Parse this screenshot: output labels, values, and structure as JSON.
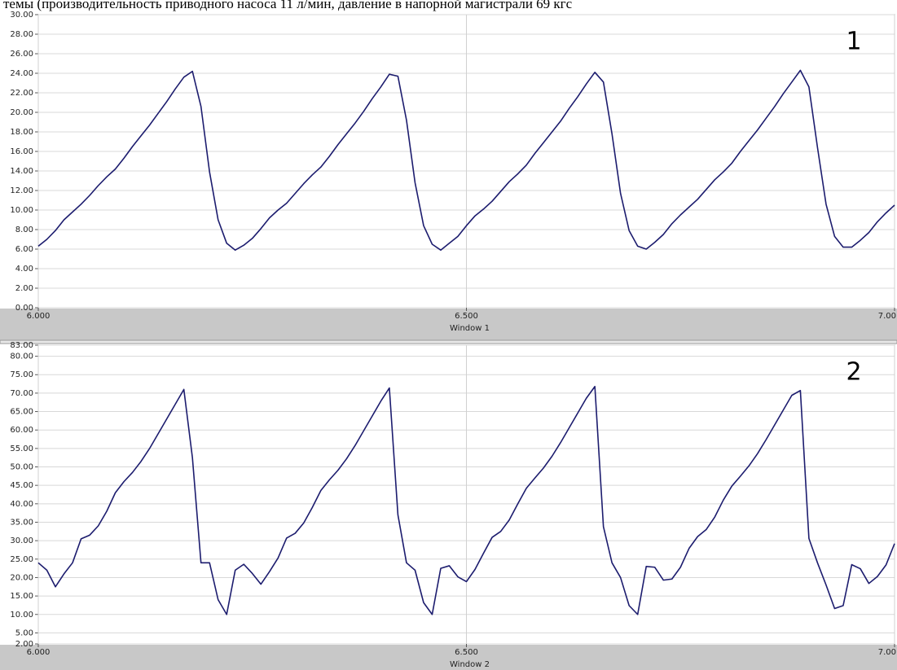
{
  "caption": "темы (производительность приводного насоса 11 л/мин, давление в напорной магистрали 69 кгс",
  "chart_data": [
    {
      "type": "line",
      "x_label": "Window 1",
      "annotation": "1",
      "xlim": [
        6,
        7
      ],
      "xticks": [
        {
          "value": 6,
          "label": "6.000"
        },
        {
          "value": 6.5,
          "label": "6.500"
        },
        {
          "value": 7,
          "label": "7.00"
        }
      ],
      "ylim": [
        0,
        30
      ],
      "yticks": [
        {
          "value": 0,
          "label": "0.00"
        },
        {
          "value": 2,
          "label": "2.00"
        },
        {
          "value": 4,
          "label": "4.00"
        },
        {
          "value": 6,
          "label": "6.00"
        },
        {
          "value": 8,
          "label": "8.00"
        },
        {
          "value": 10,
          "label": "10.00"
        },
        {
          "value": 12,
          "label": "12.00"
        },
        {
          "value": 14,
          "label": "14.00"
        },
        {
          "value": 16,
          "label": "16.00"
        },
        {
          "value": 18,
          "label": "18.00"
        },
        {
          "value": 20,
          "label": "20.00"
        },
        {
          "value": 22,
          "label": "22.00"
        },
        {
          "value": 24,
          "label": "24.00"
        },
        {
          "value": 26,
          "label": "26.00"
        },
        {
          "value": 28,
          "label": "28.00"
        },
        {
          "value": 30,
          "label": "30.00"
        }
      ],
      "grid": true,
      "x": [
        6,
        6.01,
        6.02,
        6.03,
        6.04,
        6.05,
        6.06,
        6.07,
        6.08,
        6.09,
        6.1,
        6.11,
        6.12,
        6.13,
        6.14,
        6.15,
        6.16,
        6.17,
        6.18,
        6.19,
        6.2,
        6.21,
        6.22,
        6.23,
        6.24,
        6.25,
        6.26,
        6.27,
        6.28,
        6.29,
        6.3,
        6.31,
        6.32,
        6.33,
        6.34,
        6.35,
        6.36,
        6.37,
        6.38,
        6.39,
        6.4,
        6.41,
        6.42,
        6.43,
        6.44,
        6.45,
        6.46,
        6.47,
        6.48,
        6.49,
        6.5,
        6.51,
        6.52,
        6.53,
        6.54,
        6.55,
        6.56,
        6.57,
        6.58,
        6.59,
        6.6,
        6.61,
        6.62,
        6.63,
        6.64,
        6.65,
        6.66,
        6.67,
        6.68,
        6.69,
        6.7,
        6.71,
        6.72,
        6.73,
        6.74,
        6.75,
        6.76,
        6.77,
        6.78,
        6.79,
        6.8,
        6.81,
        6.82,
        6.83,
        6.84,
        6.85,
        6.86,
        6.87,
        6.88,
        6.89,
        6.9,
        6.91,
        6.92,
        6.93,
        6.94,
        6.95,
        6.96,
        6.97,
        6.98,
        6.99,
        7
      ],
      "series": [
        {
          "color": "#1c1c6e",
          "values": [
            6.3,
            7.0,
            7.9,
            9.0,
            9.8,
            10.6,
            11.5,
            12.5,
            13.4,
            14.2,
            15.3,
            16.5,
            17.6,
            18.7,
            19.9,
            21.1,
            22.4,
            23.6,
            24.2,
            20.6,
            13.9,
            9.0,
            6.6,
            5.9,
            6.4,
            7.1,
            8.1,
            9.2,
            10.0,
            10.7,
            11.7,
            12.7,
            13.6,
            14.4,
            15.5,
            16.7,
            17.8,
            18.9,
            20.1,
            21.4,
            22.6,
            23.9,
            23.7,
            19.2,
            12.8,
            8.4,
            6.5,
            5.9,
            6.6,
            7.3,
            8.4,
            9.4,
            10.1,
            10.9,
            11.9,
            12.9,
            13.7,
            14.6,
            15.8,
            16.9,
            18.0,
            19.1,
            20.4,
            21.6,
            22.9,
            24.1,
            23.1,
            17.8,
            11.7,
            7.9,
            6.3,
            6.0,
            6.7,
            7.5,
            8.6,
            9.5,
            10.3,
            11.1,
            12.1,
            13.1,
            13.9,
            14.8,
            16.0,
            17.1,
            18.2,
            19.4,
            20.6,
            21.9,
            23.1,
            24.3,
            22.6,
            16.4,
            10.6,
            7.3,
            6.2,
            6.2,
            6.9,
            7.7,
            8.8,
            9.7,
            10.5
          ]
        }
      ]
    },
    {
      "type": "line",
      "x_label": "Window 2",
      "annotation": "2",
      "xlim": [
        6,
        7
      ],
      "xticks": [
        {
          "value": 6,
          "label": "6.000"
        },
        {
          "value": 6.5,
          "label": "6.500"
        },
        {
          "value": 7,
          "label": "7.00"
        }
      ],
      "ylim": [
        2,
        83
      ],
      "yticks": [
        {
          "value": 2,
          "label": "2.00"
        },
        {
          "value": 5,
          "label": "5.00"
        },
        {
          "value": 10,
          "label": "10.00"
        },
        {
          "value": 15,
          "label": "15.00"
        },
        {
          "value": 20,
          "label": "20.00"
        },
        {
          "value": 25,
          "label": "25.00"
        },
        {
          "value": 30,
          "label": "30.00"
        },
        {
          "value": 35,
          "label": "35.00"
        },
        {
          "value": 40,
          "label": "40.00"
        },
        {
          "value": 45,
          "label": "45.00"
        },
        {
          "value": 50,
          "label": "50.00"
        },
        {
          "value": 55,
          "label": "55.00"
        },
        {
          "value": 60,
          "label": "60.00"
        },
        {
          "value": 65,
          "label": "65.00"
        },
        {
          "value": 70,
          "label": "70.00"
        },
        {
          "value": 75,
          "label": "75.00"
        },
        {
          "value": 80,
          "label": "80.00"
        },
        {
          "value": 83,
          "label": "83.00"
        }
      ],
      "grid": true,
      "x": [
        6,
        6.01,
        6.02,
        6.03,
        6.04,
        6.05,
        6.06,
        6.07,
        6.08,
        6.09,
        6.1,
        6.11,
        6.12,
        6.13,
        6.14,
        6.15,
        6.16,
        6.17,
        6.18,
        6.19,
        6.2,
        6.21,
        6.22,
        6.23,
        6.24,
        6.25,
        6.26,
        6.27,
        6.28,
        6.29,
        6.3,
        6.31,
        6.32,
        6.33,
        6.34,
        6.35,
        6.36,
        6.37,
        6.38,
        6.39,
        6.4,
        6.41,
        6.42,
        6.43,
        6.44,
        6.45,
        6.46,
        6.47,
        6.48,
        6.49,
        6.5,
        6.51,
        6.52,
        6.53,
        6.54,
        6.55,
        6.56,
        6.57,
        6.58,
        6.59,
        6.6,
        6.61,
        6.62,
        6.63,
        6.64,
        6.65,
        6.66,
        6.67,
        6.68,
        6.69,
        6.7,
        6.71,
        6.72,
        6.73,
        6.74,
        6.75,
        6.76,
        6.77,
        6.78,
        6.79,
        6.8,
        6.81,
        6.82,
        6.83,
        6.84,
        6.85,
        6.86,
        6.87,
        6.88,
        6.89,
        6.9,
        6.91,
        6.92,
        6.93,
        6.94,
        6.95,
        6.96,
        6.97,
        6.98,
        6.99,
        7
      ],
      "series": [
        {
          "color": "#1c1c6e",
          "values": [
            24,
            22,
            17.5,
            21,
            24,
            30.5,
            31.5,
            34,
            38,
            43,
            46,
            48.5,
            51.5,
            55,
            59,
            63,
            67,
            71,
            52.5,
            24,
            24,
            14,
            10,
            22,
            23.6,
            21.1,
            18.2,
            21.6,
            25.3,
            30.7,
            32.0,
            34.8,
            39.0,
            43.6,
            46.5,
            49.1,
            52.2,
            55.8,
            59.8,
            63.8,
            67.8,
            71.4,
            37,
            24,
            22,
            13.2,
            10,
            22.5,
            23.2,
            20.2,
            18.9,
            22.2,
            26.6,
            30.9,
            32.5,
            35.6,
            40.0,
            44.2,
            47.0,
            49.7,
            52.9,
            56.6,
            60.6,
            64.6,
            68.6,
            71.8,
            33.8,
            24,
            20,
            12.4,
            10,
            23,
            22.8,
            19.3,
            19.6,
            22.8,
            27.9,
            31.1,
            33.0,
            36.4,
            41.0,
            44.8,
            47.5,
            50.3,
            53.6,
            57.4,
            61.4,
            65.4,
            69.4,
            70.7,
            30.6,
            24,
            18,
            11.6,
            12.4,
            23.5,
            22.4,
            18.4,
            20.3,
            23.4,
            29.2
          ]
        }
      ]
    }
  ]
}
